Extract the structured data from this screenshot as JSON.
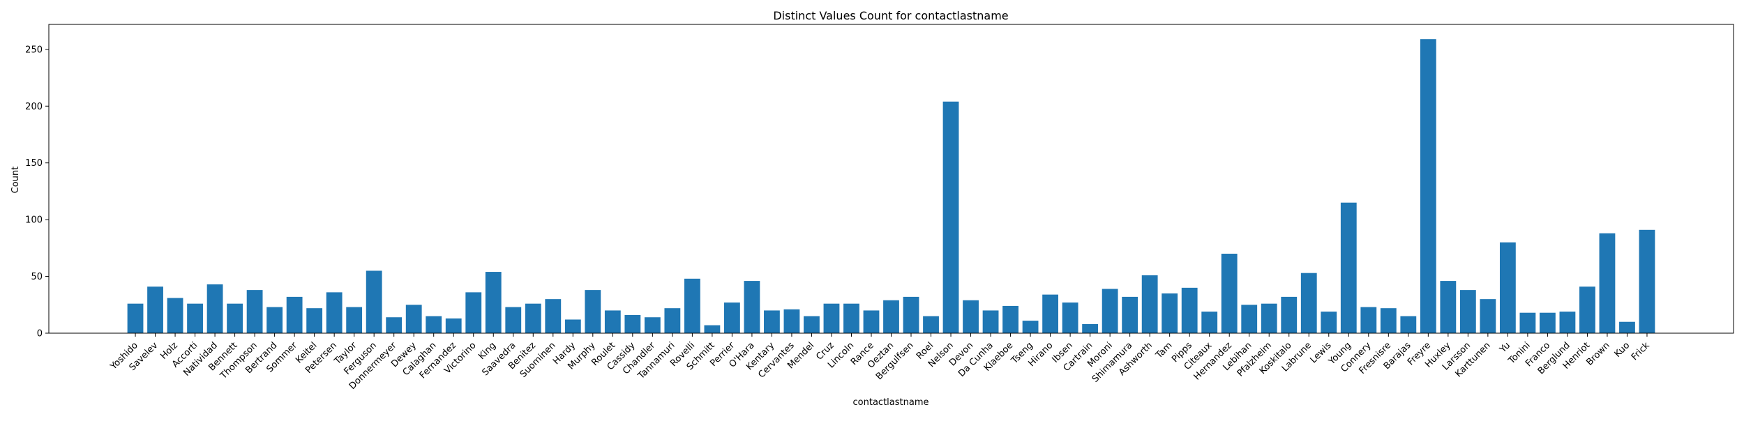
{
  "chart_data": {
    "type": "bar",
    "title": "Distinct Values Count for contactlastname",
    "xlabel": "contactlastname",
    "ylabel": "Count",
    "ylim": [
      0,
      272
    ],
    "yticks": [
      0,
      50,
      100,
      150,
      200,
      250
    ],
    "grid": false,
    "bar_color": "#1f77b4",
    "categories": [
      "Yoshido",
      "Savelev",
      "Holz",
      "Accorti",
      "Natividad",
      "Bennett",
      "Thompson",
      "Bertrand",
      "Sommer",
      "Keitel",
      "Petersen",
      "Taylor",
      "Ferguson",
      "Donnermeyer",
      "Dewey",
      "Calaghan",
      "Fernandez",
      "Victorino",
      "King",
      "Saavedra",
      "Benitez",
      "Suominen",
      "Hardy",
      "Murphy",
      "Roulet",
      "Cassidy",
      "Chandler",
      "Tannamuri",
      "Rovelli",
      "Schmitt",
      "Perrier",
      "O'Hara",
      "Kentary",
      "Cervantes",
      "Mendel",
      "Cruz",
      "Lincoln",
      "Rance",
      "Oeztan",
      "Bergulfsen",
      "Roel",
      "Nelson",
      "Devon",
      "Da Cunha",
      "Klaeboe",
      "Tseng",
      "Hirano",
      "Ibsen",
      "Cartrain",
      "Moroni",
      "Shimamura",
      "Ashworth",
      "Tam",
      "Pipps",
      "Citeaux",
      "Hernandez",
      "Lebihan",
      "Pfalzheim",
      "Koskitalo",
      "Labrune",
      "Lewis",
      "Young",
      "Connery",
      "Fresnisre",
      "Barajas",
      "Freyre",
      "Huxley",
      "Larsson",
      "Karttunen",
      "Yu",
      "Tonini",
      "Franco",
      "Berglund",
      "Henriot",
      "Brown",
      "Kuo",
      "Frick"
    ],
    "values": [
      26,
      41,
      31,
      26,
      43,
      26,
      38,
      23,
      32,
      22,
      36,
      23,
      55,
      14,
      25,
      15,
      13,
      36,
      54,
      23,
      26,
      30,
      12,
      38,
      20,
      16,
      14,
      22,
      48,
      7,
      27,
      46,
      20,
      21,
      15,
      26,
      26,
      20,
      29,
      32,
      15,
      204,
      29,
      20,
      24,
      11,
      34,
      27,
      8,
      39,
      32,
      51,
      35,
      40,
      19,
      70,
      25,
      26,
      32,
      53,
      19,
      115,
      23,
      22,
      15,
      259,
      46,
      38,
      30,
      80,
      18,
      18,
      19,
      41,
      88,
      10,
      91
    ]
  }
}
